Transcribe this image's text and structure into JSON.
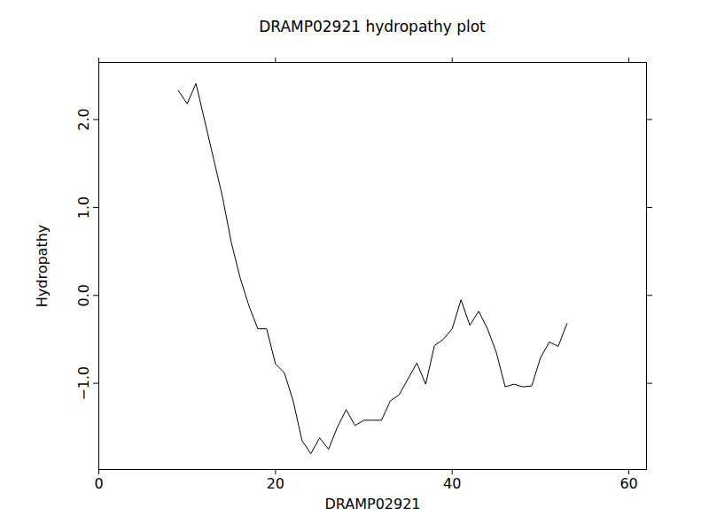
{
  "chart_data": {
    "type": "line",
    "title": "DRAMP02921 hydropathy plot",
    "x_label": "DRAMP02921",
    "y_label": "Hydropathy",
    "x": [
      9,
      10,
      11,
      12,
      13,
      14,
      15,
      16,
      17,
      18,
      19,
      20,
      21,
      22,
      23,
      24,
      25,
      26,
      27,
      28,
      29,
      30,
      31,
      32,
      33,
      34,
      35,
      36,
      37,
      38,
      39,
      40,
      41,
      42,
      43,
      44,
      45,
      46,
      47,
      48,
      49,
      50,
      51,
      52,
      53
    ],
    "values": [
      2.33,
      2.18,
      2.41,
      1.98,
      1.55,
      1.12,
      0.6,
      0.2,
      -0.12,
      -0.38,
      -0.38,
      -0.78,
      -0.88,
      -1.2,
      -1.65,
      -1.8,
      -1.62,
      -1.75,
      -1.5,
      -1.3,
      -1.48,
      -1.42,
      -1.42,
      -1.42,
      -1.2,
      -1.13,
      -0.95,
      -0.77,
      -1.01,
      -0.57,
      -0.5,
      -0.38,
      -0.05,
      -0.34,
      -0.18,
      -0.38,
      -0.65,
      -1.04,
      -1.01,
      -1.04,
      -1.03,
      -0.71,
      -0.53,
      -0.58,
      -0.32
    ],
    "color": "#000000",
    "xlim": [
      0,
      62
    ],
    "xticks": [
      0,
      20,
      40,
      60
    ],
    "ylim": [
      -1.98,
      2.65
    ],
    "yticks": [
      -1,
      0,
      1,
      2
    ],
    "grid": false
  }
}
